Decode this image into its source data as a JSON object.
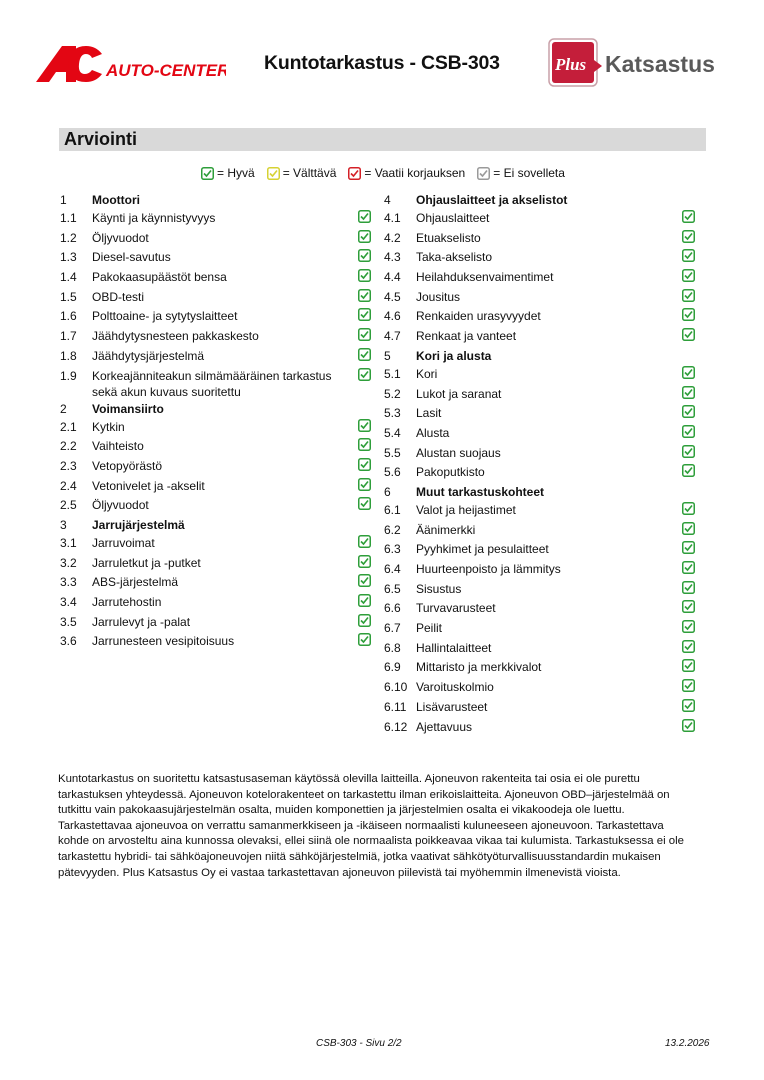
{
  "header": {
    "left_logo_text": "AUTO-CENTER",
    "left_logo_mark": "AC",
    "title": "Kuntotarkastus - CSB-303",
    "right_logo_badge": "Plus",
    "right_logo_text": "Katsastus"
  },
  "section_title": "Arviointi",
  "colors": {
    "good": "#2e9e3a",
    "acceptable": "#d6d233",
    "needs_repair": "#d42027",
    "na": "#9a9a9a",
    "bar": "#d9d9d9",
    "brand_red": "#e30613"
  },
  "legend": [
    {
      "status": "good",
      "label": "= Hyvä"
    },
    {
      "status": "acceptable",
      "label": "= Välttävä"
    },
    {
      "status": "needs_repair",
      "label": "= Vaatii korjauksen"
    },
    {
      "status": "na",
      "label": "= Ei sovelleta"
    }
  ],
  "left_column": [
    {
      "num": "1",
      "label": "Moottori",
      "header": true
    },
    {
      "num": "1.1",
      "label": "Käynti ja käynnistyvyys",
      "status": "good"
    },
    {
      "num": "1.2",
      "label": "Öljyvuodot",
      "status": "good"
    },
    {
      "num": "1.3",
      "label": "Diesel-savutus",
      "status": "good"
    },
    {
      "num": "1.4",
      "label": "Pakokaasupäästöt bensa",
      "status": "good"
    },
    {
      "num": "1.5",
      "label": "OBD-testi",
      "status": "good"
    },
    {
      "num": "1.6",
      "label": "Polttoaine- ja sytytyslaitteet",
      "status": "good"
    },
    {
      "num": "1.7",
      "label": "Jäähdytysnesteen pakkaskesto",
      "status": "good"
    },
    {
      "num": "1.8",
      "label": "Jäähdytysjärjestelmä",
      "status": "good"
    },
    {
      "num": "1.9",
      "label": "Korkeajänniteakun silmämääräinen tarkastus sekä akun kuvaus suoritettu",
      "status": "good",
      "double": true
    },
    {
      "num": "2",
      "label": "Voimansiirto",
      "header": true
    },
    {
      "num": "2.1",
      "label": "Kytkin",
      "status": "good"
    },
    {
      "num": "2.2",
      "label": "Vaihteisto",
      "status": "good"
    },
    {
      "num": "2.3",
      "label": "Vetopyörästö",
      "status": "good"
    },
    {
      "num": "2.4",
      "label": "Vetonivelet ja -akselit",
      "status": "good"
    },
    {
      "num": "2.5",
      "label": "Öljyvuodot",
      "status": "good"
    },
    {
      "num": "3",
      "label": "Jarrujärjestelmä",
      "header": true
    },
    {
      "num": "3.1",
      "label": "Jarruvoimat",
      "status": "good"
    },
    {
      "num": "3.2",
      "label": "Jarruletkut ja -putket",
      "status": "good"
    },
    {
      "num": "3.3",
      "label": "ABS-järjestelmä",
      "status": "good"
    },
    {
      "num": "3.4",
      "label": "Jarrutehostin",
      "status": "good"
    },
    {
      "num": "3.5",
      "label": "Jarrulevyt ja -palat",
      "status": "good"
    },
    {
      "num": "3.6",
      "label": "Jarrunesteen vesipitoisuus",
      "status": "good"
    }
  ],
  "right_column": [
    {
      "num": "4",
      "label": "Ohjauslaitteet ja akselistot",
      "header": true
    },
    {
      "num": "4.1",
      "label": "Ohjauslaitteet",
      "status": "good"
    },
    {
      "num": "4.2",
      "label": "Etuakselisto",
      "status": "good"
    },
    {
      "num": "4.3",
      "label": "Taka-akselisto",
      "status": "good"
    },
    {
      "num": "4.4",
      "label": "Heilahduksenvaimentimet",
      "status": "good"
    },
    {
      "num": "4.5",
      "label": "Jousitus",
      "status": "good"
    },
    {
      "num": "4.6",
      "label": "Renkaiden urasyvyydet",
      "status": "good"
    },
    {
      "num": "4.7",
      "label": "Renkaat ja vanteet",
      "status": "good"
    },
    {
      "num": "5",
      "label": "Kori ja alusta",
      "header": true
    },
    {
      "num": "5.1",
      "label": "Kori",
      "status": "good"
    },
    {
      "num": "5.2",
      "label": "Lukot ja saranat",
      "status": "good"
    },
    {
      "num": "5.3",
      "label": "Lasit",
      "status": "good"
    },
    {
      "num": "5.4",
      "label": "Alusta",
      "status": "good"
    },
    {
      "num": "5.5",
      "label": "Alustan suojaus",
      "status": "good"
    },
    {
      "num": "5.6",
      "label": "Pakoputkisto",
      "status": "good"
    },
    {
      "num": "6",
      "label": "Muut tarkastuskohteet",
      "header": true
    },
    {
      "num": "6.1",
      "label": "Valot ja heijastimet",
      "status": "good"
    },
    {
      "num": "6.2",
      "label": "Äänimerkki",
      "status": "good"
    },
    {
      "num": "6.3",
      "label": "Pyyhkimet ja pesulaitteet",
      "status": "good"
    },
    {
      "num": "6.4",
      "label": "Huurteenpoisto ja lämmitys",
      "status": "good"
    },
    {
      "num": "6.5",
      "label": "Sisustus",
      "status": "good"
    },
    {
      "num": "6.6",
      "label": "Turvavarusteet",
      "status": "good"
    },
    {
      "num": "6.7",
      "label": "Peilit",
      "status": "good"
    },
    {
      "num": "6.8",
      "label": "Hallintalaitteet",
      "status": "good"
    },
    {
      "num": "6.9",
      "label": "Mittaristo ja merkkivalot",
      "status": "good"
    },
    {
      "num": "6.10",
      "label": "Varoituskolmio",
      "status": "good"
    },
    {
      "num": "6.11",
      "label": "Lisävarusteet",
      "status": "good"
    },
    {
      "num": "6.12",
      "label": "Ajettavuus",
      "status": "good"
    }
  ],
  "notes_lines": [
    "Kuntotarkastus on suoritettu katsastusaseman käytössä olevilla laitteilla. Ajoneuvon rakenteita tai osia ei ole purettu",
    "tarkastuksen yhteydessä. Ajoneuvon kotelorakenteet on tarkastettu ilman erikoislaitteita. Ajoneuvon OBD–järjestelmää on",
    "tutkittu vain pakokaasujärjestelmän osalta, muiden komponettien ja järjestelmien osalta ei vikakoodeja ole luettu.",
    "Tarkastettavaa ajoneuvoa on verrattu samanmerkkiseen ja -ikäiseen normaalisti kuluneeseen ajoneuvoon. Tarkastettava",
    "kohde on arvosteltu aina kunnossa olevaksi, ellei siinä ole normaalista poikkeavaa vikaa tai kulumista. Tarkastuksessa ei ole",
    "tarkastettu hybridi- tai sähköajoneuvojen niitä sähköjärjestelmiä, jotka vaativat sähkötyöturvallisuusstandardin mukaisen",
    "pätevyyden. Plus Katsastus Oy ei vastaa tarkastettavan ajoneuvon piilevistä tai myöhemmin ilmenevistä vioista."
  ],
  "footer": {
    "page": "CSB-303 - Sivu 2/2",
    "date": "13.2.2026"
  }
}
